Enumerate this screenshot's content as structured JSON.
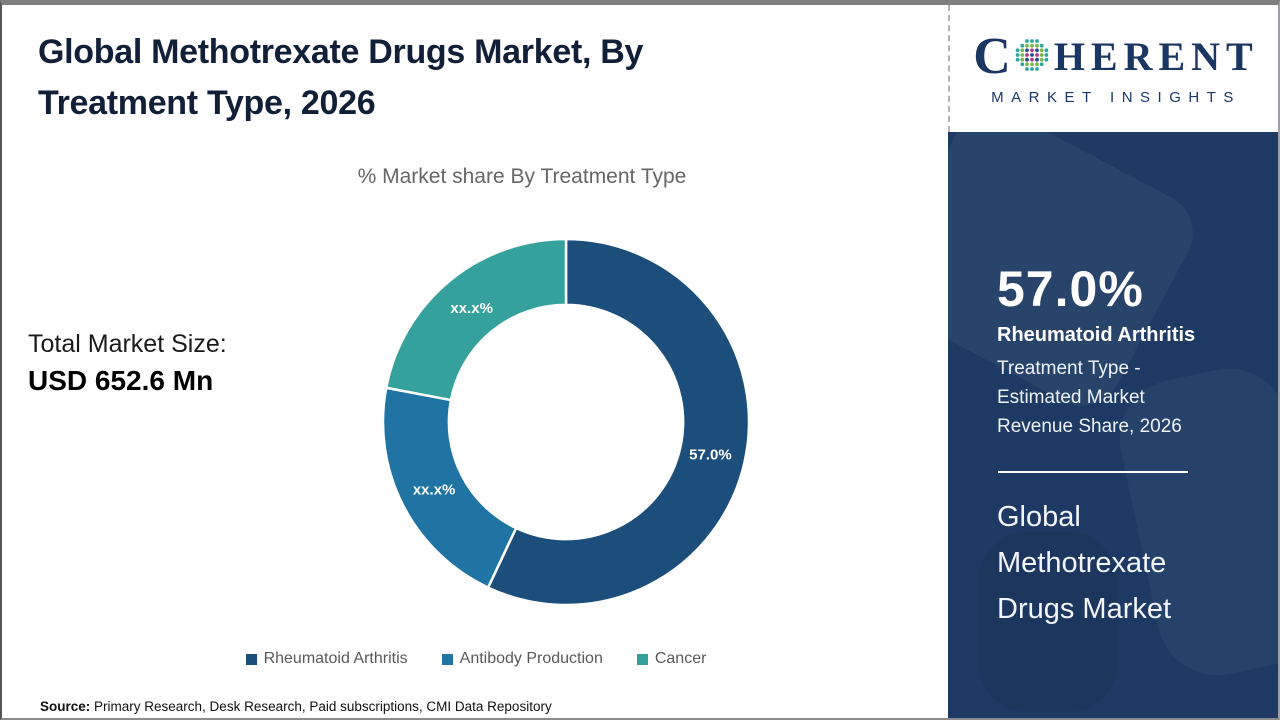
{
  "header": {
    "title_line1": "Global Methotrexate Drugs Market, By",
    "title_line2": "Treatment Type, 2026"
  },
  "logo": {
    "brand_c": "C",
    "brand_rest": "HERENT",
    "brand_sub": "MARKET INSIGHTS",
    "globe_icon": "dotted-globe-icon",
    "brand_color": "#1c3664"
  },
  "chart_data": {
    "type": "pie",
    "donut": true,
    "title": "% Market share By Treatment Type",
    "categories": [
      "Rheumatoid Arthritis",
      "Antibody Production",
      "Cancer"
    ],
    "values": [
      57.0,
      21.0,
      22.0
    ],
    "slice_labels": [
      "57.0%",
      "xx.x%",
      "xx.x%"
    ],
    "colors": [
      "#1c4e7b",
      "#1f74a3",
      "#35a19d"
    ],
    "start_angle_deg": 0,
    "direction": "clockwise",
    "inner_radius_ratio": 0.64,
    "separator_color": "#ffffff",
    "legend_position": "bottom",
    "legend": [
      {
        "label": "Rheumatoid Arthritis",
        "color": "#1c4e7b"
      },
      {
        "label": "Antibody Production",
        "color": "#1f74a3"
      },
      {
        "label": "Cancer",
        "color": "#35a19d"
      }
    ]
  },
  "market_size": {
    "label": "Total Market Size:",
    "value": "USD 652.6 Mn"
  },
  "sidebar": {
    "highlight_value": "57.0%",
    "highlight_bold": "Rheumatoid Arthritis",
    "highlight_lines": [
      "Treatment Type -",
      "Estimated Market",
      "Revenue Share, 2026"
    ],
    "market_name_lines": [
      "Global",
      "Methotrexate",
      "Drugs Market"
    ],
    "bg_color": "#1e3a64"
  },
  "source": {
    "label": "Source:",
    "text": "Primary Research, Desk Research, Paid subscriptions, CMI Data Repository"
  }
}
